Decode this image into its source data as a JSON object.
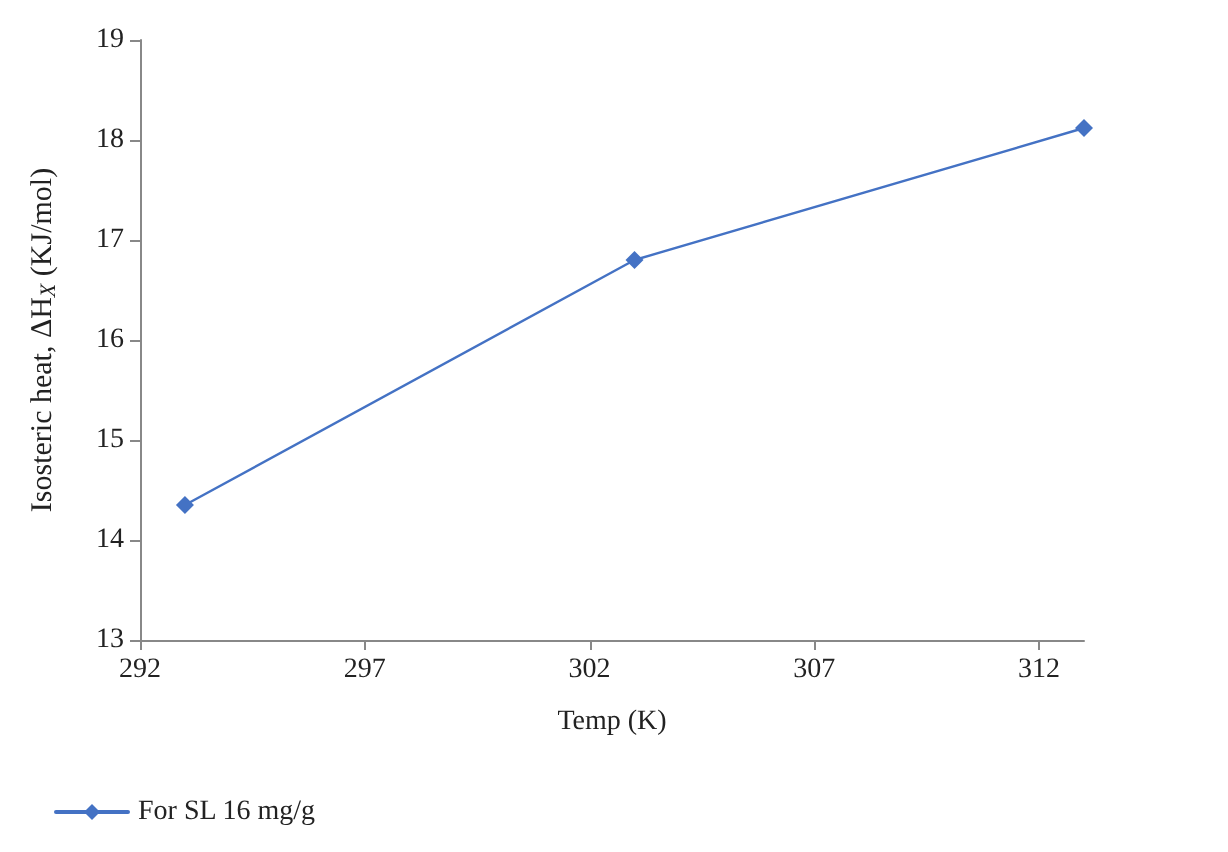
{
  "chart_data": {
    "type": "line",
    "xlabel": "Temp (K)",
    "ylabel": "Isosteric heat, ΔH$_{X}$ (KJ/mol)",
    "x": [
      293,
      303,
      313
    ],
    "series": [
      {
        "name": "For SL 16 mg/g",
        "color": "#4472c4",
        "values": [
          14.35,
          16.8,
          18.12
        ]
      }
    ],
    "xlim": [
      292,
      313
    ],
    "xticks": [
      292,
      297,
      302,
      307,
      312
    ],
    "ylim": [
      13,
      19
    ],
    "yticks": [
      13,
      14,
      15,
      16,
      17,
      18,
      19
    ],
    "grid": false,
    "legend": "bottom left",
    "marker": "diamond",
    "line_style": "solid"
  }
}
